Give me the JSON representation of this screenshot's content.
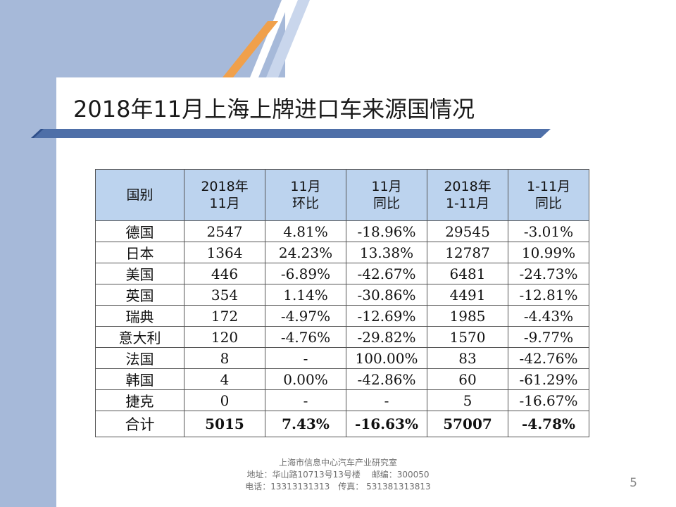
{
  "title": "2018年11月上海上牌进口车来源国情况",
  "colors": {
    "accent": "#f0a04b",
    "band": "#a6b9d9",
    "header_fill": "#bcd3ee",
    "stripe": "#4e6fa8"
  },
  "table": {
    "headers": [
      {
        "line1": "国别",
        "line2": ""
      },
      {
        "line1": "2018年",
        "line2": "11月"
      },
      {
        "line1": "11月",
        "line2": "环比"
      },
      {
        "line1": "11月",
        "line2": "同比"
      },
      {
        "line1": "2018年",
        "line2": "1-11月"
      },
      {
        "line1": "1-11月",
        "line2": "同比"
      }
    ],
    "rows": [
      [
        "德国",
        "2547",
        "4.81%",
        "-18.96%",
        "29545",
        "-3.01%"
      ],
      [
        "日本",
        "1364",
        "24.23%",
        "13.38%",
        "12787",
        "10.99%"
      ],
      [
        "美国",
        "446",
        "-6.89%",
        "-42.67%",
        "6481",
        "-24.73%"
      ],
      [
        "英国",
        "354",
        "1.14%",
        "-30.86%",
        "4491",
        "-12.81%"
      ],
      [
        "瑞典",
        "172",
        "-4.97%",
        "-12.69%",
        "1985",
        "-4.43%"
      ],
      [
        "意大利",
        "120",
        "-4.76%",
        "-29.82%",
        "1570",
        "-9.77%"
      ],
      [
        "法国",
        "8",
        "-",
        "100.00%",
        "83",
        "-42.76%"
      ],
      [
        "韩国",
        "4",
        "0.00%",
        "-42.86%",
        "60",
        "-61.29%"
      ],
      [
        "捷克",
        "0",
        "-",
        "-",
        "5",
        "-16.67%"
      ]
    ],
    "total": [
      "合计",
      "5015",
      "7.43%",
      "-16.63%",
      "57007",
      "-4.78%"
    ]
  },
  "footer": {
    "org": "上海市信息中心汽车产业研究室",
    "address": "地址：华山路10713号13号楼　 邮编：300050",
    "contact": "电话：13313131313　传真： 531381313813"
  },
  "page_number": "5"
}
